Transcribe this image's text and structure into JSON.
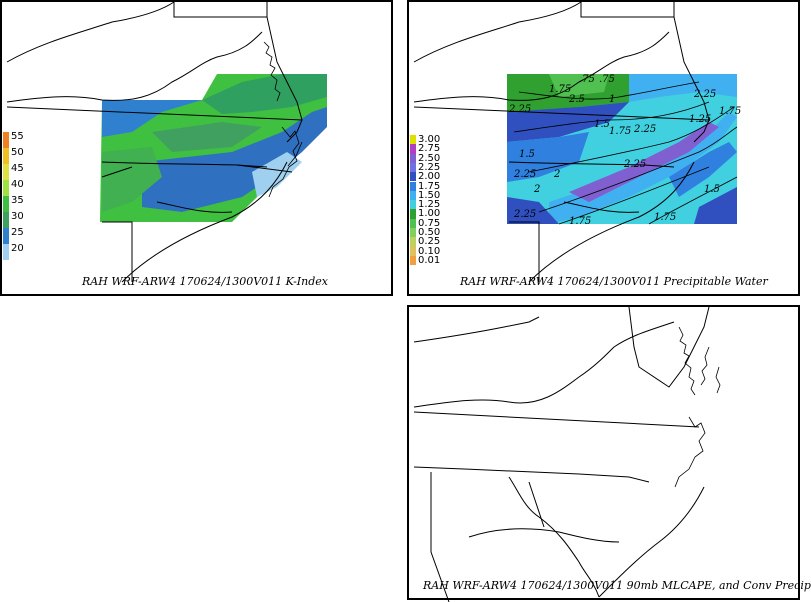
{
  "panels": {
    "kindex": {
      "caption": "RAH WRF-ARW4 170624/1300V011  K-Index",
      "legend": [
        {
          "label": "55",
          "color": "#f08020"
        },
        {
          "label": "50",
          "color": "#f0c020"
        },
        {
          "label": "45",
          "color": "#e0e040"
        },
        {
          "label": "40",
          "color": "#a0e040"
        },
        {
          "label": "35",
          "color": "#40c040"
        },
        {
          "label": "30",
          "color": "#40a060"
        },
        {
          "label": "25",
          "color": "#3080d0"
        },
        {
          "label": "20",
          "color": "#a0d0f0"
        }
      ]
    },
    "pwat": {
      "caption": "RAH WRF-ARW4 170624/1300V011  Precipitable Water",
      "legend": [
        {
          "label": "3.00",
          "color": "#e0e000"
        },
        {
          "label": "2.75",
          "color": "#b040c0"
        },
        {
          "label": "2.50",
          "color": "#8060d0"
        },
        {
          "label": "2.25",
          "color": "#7070e0"
        },
        {
          "label": "2.00",
          "color": "#3050c0"
        },
        {
          "label": "1.75",
          "color": "#3080e0"
        },
        {
          "label": "1.50",
          "color": "#40b0f0"
        },
        {
          "label": "1.25",
          "color": "#40d0e0"
        },
        {
          "label": "1.00",
          "color": "#30a030"
        },
        {
          "label": "0.75",
          "color": "#50c050"
        },
        {
          "label": "0.50",
          "color": "#80d060"
        },
        {
          "label": "0.25",
          "color": "#c0d060"
        },
        {
          "label": "0.10",
          "color": "#e0c060"
        },
        {
          "label": "0.01",
          "color": "#f0a040"
        }
      ],
      "contour_labels": [
        "2.25",
        "1.75",
        "2",
        "2.25",
        "1.5",
        "1.75",
        "2.25",
        "2.25",
        "2.25",
        "2",
        "1.75",
        "1.5",
        "1.75",
        "1.5",
        "2.25",
        "1.75",
        "2.5",
        "1",
        "1.25",
        ".75",
        ".75"
      ]
    },
    "mlcape": {
      "caption": "RAH WRF-ARW4 170624/1300V011  90mb MLCAPE, and Conv Precip"
    }
  }
}
